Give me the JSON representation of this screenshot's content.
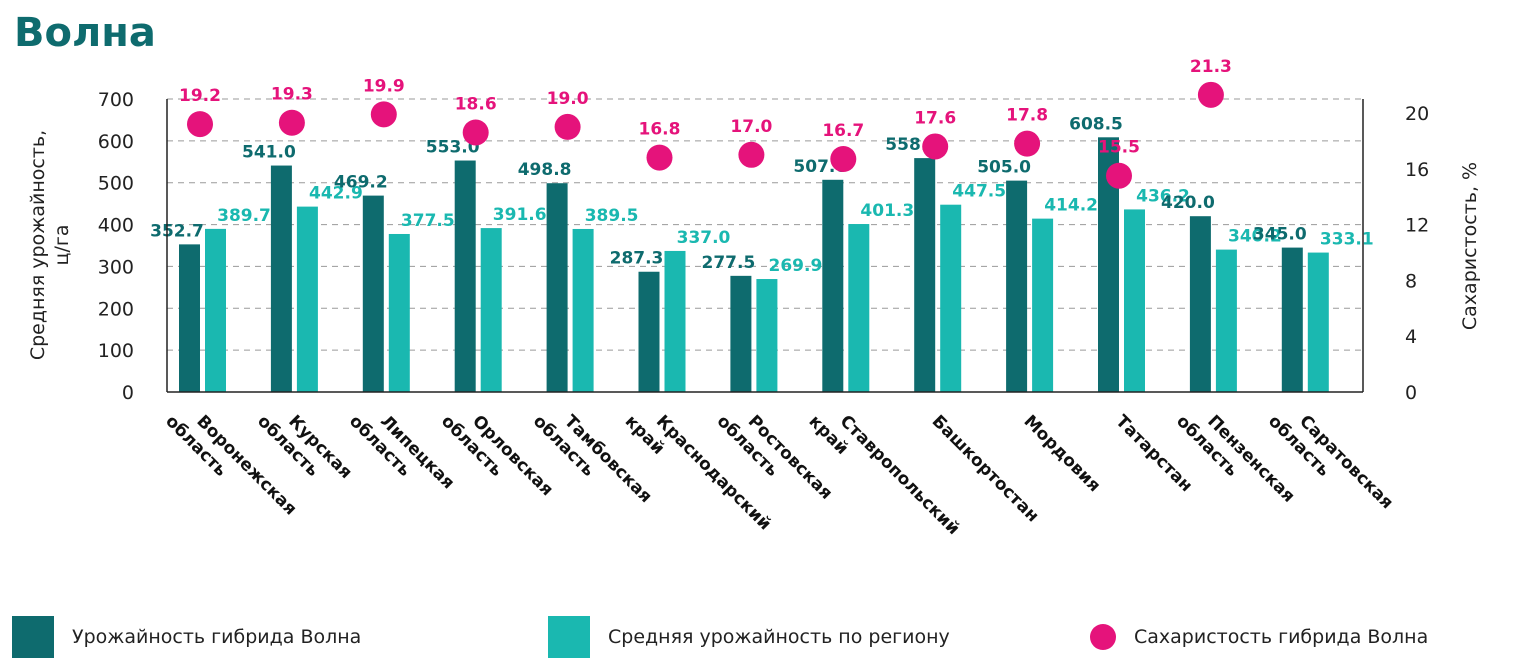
{
  "title": "Волна",
  "colors": {
    "title": "#0e6b6e",
    "hybrid": "#0e6b6e",
    "region": "#1ab8b0",
    "sugar": "#e5137b"
  },
  "chart_data": {
    "type": "bar",
    "categories": [
      [
        "Воронежская",
        "область"
      ],
      [
        "Курская",
        "область"
      ],
      [
        "Липецкая",
        "область"
      ],
      [
        "Орловская",
        "область"
      ],
      [
        "Тамбовская",
        "область"
      ],
      [
        "Краснодарский",
        "край"
      ],
      [
        "Ростовская",
        "область"
      ],
      [
        "Ставропольский",
        "край"
      ],
      [
        "Башкортостан"
      ],
      [
        "Мордовия"
      ],
      [
        "Татарстан"
      ],
      [
        "Пензенская",
        "область"
      ],
      [
        "Саратовская",
        "область"
      ]
    ],
    "series": [
      {
        "name": "Урожайность гибрида Волна",
        "type": "bar",
        "axis": "left",
        "values": [
          352.7,
          541.0,
          469.2,
          553.0,
          498.8,
          287.3,
          277.5,
          507.0,
          558.8,
          505.0,
          608.5,
          420.0,
          345.0
        ]
      },
      {
        "name": "Средняя урожайность по региону",
        "type": "bar",
        "axis": "left",
        "values": [
          389.7,
          442.9,
          377.5,
          391.6,
          389.5,
          337.0,
          269.9,
          401.3,
          447.5,
          414.2,
          436.2,
          340.2,
          333.1
        ]
      },
      {
        "name": "Сахаристость гибрида Волна",
        "type": "scatter",
        "axis": "right",
        "values": [
          19.2,
          19.3,
          19.9,
          18.6,
          19.0,
          16.8,
          17.0,
          16.7,
          17.6,
          17.8,
          15.5,
          21.3,
          null
        ],
        "labels": [
          "19.2",
          "19.3",
          "19.9",
          "18.6",
          "19.0",
          "16.8",
          "17.0",
          "16.7",
          "17.6",
          "17.8",
          "15.5",
          "21.3",
          ""
        ]
      }
    ],
    "bar_labels": {
      "hybrid": [
        "352.7",
        "541.0",
        "469.2",
        "553.0",
        "498.8",
        "287.3",
        "277.5",
        "507.0",
        "558.8",
        "505.0",
        "608.5",
        "420.0",
        "345.0"
      ],
      "region": [
        "389.7",
        "442.9",
        "377.5",
        "391.6",
        "389.5",
        "337.0",
        "269.9",
        "401.3",
        "447.5",
        "414.2",
        "436.2",
        "340.2",
        "333.1"
      ]
    },
    "ylabel_left": [
      "Средняя урожайность,",
      "ц/га"
    ],
    "ylabel_right": "Сахаристость, %",
    "ylim_left": [
      0,
      700
    ],
    "yticks_left": [
      0,
      100,
      200,
      300,
      400,
      500,
      600,
      700
    ],
    "ylim_right": [
      0,
      21
    ],
    "yticks_right": [
      0,
      4,
      8,
      12,
      16,
      20
    ],
    "grid": true,
    "legend_position": "bottom"
  },
  "legend": [
    {
      "label": "Урожайность гибрида Волна"
    },
    {
      "label": "Средняя урожайность по региону"
    },
    {
      "label": "Сахаристость гибрида Волна"
    }
  ]
}
